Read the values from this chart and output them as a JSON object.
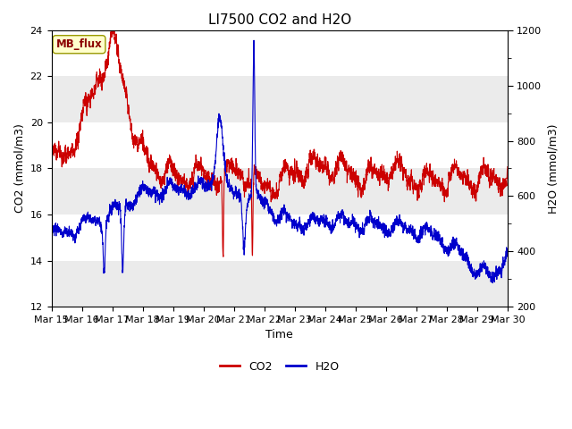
{
  "title": "LI7500 CO2 and H2O",
  "xlabel": "Time",
  "ylabel_left": "CO2 (mmol/m3)",
  "ylabel_right": "H2O (mmol/m3)",
  "ylim_left": [
    12,
    24
  ],
  "ylim_right": [
    200,
    1200
  ],
  "yticks_left": [
    12,
    14,
    16,
    18,
    20,
    22,
    24
  ],
  "yticks_right": [
    200,
    400,
    600,
    800,
    1000,
    1200
  ],
  "yticks_right_minor": [
    300,
    500,
    700,
    900,
    1100
  ],
  "xtick_labels": [
    "Mar 15",
    "Mar 16",
    "Mar 17",
    "Mar 18",
    "Mar 19",
    "Mar 20",
    "Mar 21",
    "Mar 22",
    "Mar 23",
    "Mar 24",
    "Mar 25",
    "Mar 26",
    "Mar 27",
    "Mar 28",
    "Mar 29",
    "Mar 30"
  ],
  "co2_color": "#cc0000",
  "h2o_color": "#0000cc",
  "legend_co2": "CO2",
  "legend_h2o": "H2O",
  "annotation_text": "MB_flux",
  "annotation_bg": "#ffffcc",
  "annotation_border": "#999900",
  "title_fontsize": 11,
  "axis_fontsize": 9,
  "tick_fontsize": 8,
  "legend_fontsize": 9,
  "figure_bg": "#ffffff",
  "plot_bg_band1": "#ebebeb",
  "plot_bg_band2": "#ffffff",
  "line_width": 0.8,
  "n_points": 3000
}
